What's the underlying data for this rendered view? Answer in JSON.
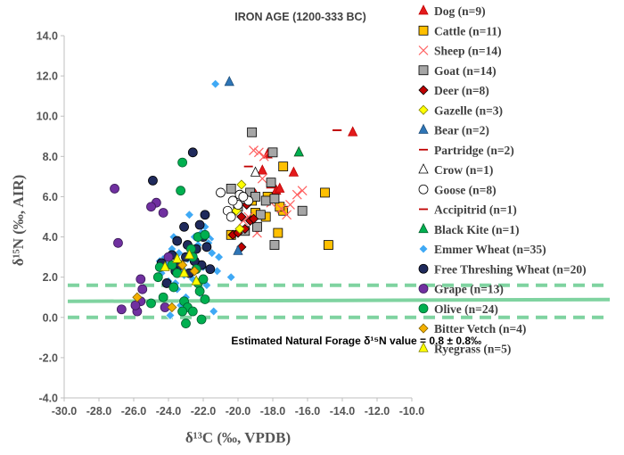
{
  "chart_data": {
    "type": "scatter",
    "title": "IRON AGE (1200-333 BC)",
    "xlabel": "δ¹³C (‰, VPDB)",
    "ylabel": "δ¹⁵N (‰, AIR)",
    "xlim": [
      -30.0,
      -10.0
    ],
    "ylim": [
      -4.0,
      14.0
    ],
    "xticks": [
      "-30.0",
      "-28.0",
      "-26.0",
      "-24.0",
      "-22.0",
      "-20.0",
      "-18.0",
      "-16.0",
      "-14.0",
      "-12.0",
      "-10.0"
    ],
    "yticks": [
      "-4.0",
      "-2.0",
      "0.0",
      "2.0",
      "4.0",
      "6.0",
      "8.0",
      "10.0",
      "12.0",
      "14.0"
    ],
    "grid": false,
    "legend_position": "right",
    "reference_lines": {
      "natural_forage_mean": 0.8,
      "upper": 1.6,
      "lower": 0.0,
      "color": "#7fd3a0"
    },
    "annotation": "Estimated Natural Forage δ¹⁵N value = 0.8 ± 0.8‰",
    "series": [
      {
        "name": "Dog (n=9)",
        "marker": "triangle",
        "fill": "#e31a1c",
        "stroke": "#c00000",
        "points": [
          [
            -13.4,
            9.2
          ],
          [
            -16.5,
            8.2
          ],
          [
            -17.8,
            6.3
          ],
          [
            -18.6,
            7.3
          ],
          [
            -16.8,
            7.2
          ],
          [
            -18.1,
            6.6
          ],
          [
            -19.0,
            6.1
          ],
          [
            -18.3,
            8.1
          ],
          [
            -17.6,
            6.4
          ]
        ]
      },
      {
        "name": "Cattle (n=11)",
        "marker": "square",
        "fill": "#ffc000",
        "stroke": "#000000",
        "points": [
          [
            -17.4,
            7.5
          ],
          [
            -15.0,
            6.2
          ],
          [
            -14.8,
            3.6
          ],
          [
            -17.4,
            5.3
          ],
          [
            -19.0,
            5.2
          ],
          [
            -17.7,
            4.2
          ],
          [
            -18.4,
            5.0
          ],
          [
            -19.2,
            5.8
          ],
          [
            -18.3,
            6.0
          ],
          [
            -20.4,
            4.1
          ],
          [
            -17.6,
            5.5
          ]
        ]
      },
      {
        "name": "Sheep (n=14)",
        "marker": "x",
        "fill": "none",
        "stroke": "#ff6060",
        "points": [
          [
            -19.1,
            8.3
          ],
          [
            -18.8,
            8.2
          ],
          [
            -18.5,
            8.0
          ],
          [
            -16.3,
            6.3
          ],
          [
            -16.6,
            6.1
          ],
          [
            -17.0,
            5.6
          ],
          [
            -17.2,
            5.1
          ],
          [
            -17.5,
            5.4
          ],
          [
            -19.4,
            5.0
          ],
          [
            -19.7,
            4.8
          ],
          [
            -18.9,
            4.2
          ],
          [
            -20.2,
            5.2
          ],
          [
            -18.1,
            5.7
          ],
          [
            -18.6,
            6.9
          ]
        ]
      },
      {
        "name": "Goat (n=14)",
        "marker": "square",
        "fill": "#a6a6a6",
        "stroke": "#000000",
        "points": [
          [
            -19.2,
            9.2
          ],
          [
            -18.0,
            8.2
          ],
          [
            -16.3,
            5.3
          ],
          [
            -17.9,
            3.6
          ],
          [
            -20.4,
            6.4
          ],
          [
            -19.3,
            6.2
          ],
          [
            -18.1,
            6.7
          ],
          [
            -18.4,
            5.8
          ],
          [
            -19.6,
            4.3
          ],
          [
            -18.9,
            4.5
          ],
          [
            -17.9,
            5.9
          ],
          [
            -19.0,
            6.0
          ],
          [
            -20.0,
            5.5
          ],
          [
            -18.7,
            5.1
          ]
        ]
      },
      {
        "name": "Deer (n=8)",
        "marker": "diamond",
        "fill": "#c00000",
        "stroke": "#000000",
        "points": [
          [
            -19.8,
            5.0
          ],
          [
            -19.3,
            4.8
          ],
          [
            -20.3,
            4.1
          ],
          [
            -19.6,
            4.4
          ],
          [
            -19.8,
            3.5
          ],
          [
            -19.5,
            5.6
          ],
          [
            -19.1,
            4.9
          ],
          [
            -20.0,
            4.2
          ]
        ]
      },
      {
        "name": "Gazelle (n=3)",
        "marker": "diamond",
        "fill": "#ffff00",
        "stroke": "#808000",
        "points": [
          [
            -19.8,
            6.6
          ],
          [
            -20.1,
            5.3
          ],
          [
            -19.9,
            4.4
          ]
        ]
      },
      {
        "name": "Bear (n=2)",
        "marker": "triangle",
        "fill": "#2e75b6",
        "stroke": "#1f4e79",
        "points": [
          [
            -20.5,
            11.7
          ],
          [
            -20.0,
            3.3
          ]
        ]
      },
      {
        "name": "Partridge (n=2)",
        "marker": "dash",
        "fill": "none",
        "stroke": "#c00000",
        "points": [
          [
            -14.3,
            9.3
          ],
          [
            -19.4,
            7.5
          ]
        ]
      },
      {
        "name": "Crow (n=1)",
        "marker": "triangle",
        "fill": "#ffffff",
        "stroke": "#000000",
        "points": [
          [
            -19.0,
            7.2
          ]
        ]
      },
      {
        "name": "Goose (n=8)",
        "marker": "circle",
        "fill": "#ffffff",
        "stroke": "#000000",
        "points": [
          [
            -21.0,
            6.2
          ],
          [
            -20.6,
            5.3
          ],
          [
            -20.4,
            5.0
          ],
          [
            -19.9,
            6.1
          ],
          [
            -19.4,
            5.8
          ],
          [
            -20.0,
            5.6
          ],
          [
            -19.7,
            6.0
          ],
          [
            -20.3,
            5.8
          ]
        ]
      },
      {
        "name": "Accipitrid (n=1)",
        "marker": "dash",
        "fill": "none",
        "stroke": "#c00000",
        "points": [
          [
            -14.3,
            9.3
          ]
        ]
      },
      {
        "name": "Black Kite (n=1)",
        "marker": "triangle",
        "fill": "#00b050",
        "stroke": "#00602c",
        "points": [
          [
            -16.5,
            8.2
          ]
        ]
      },
      {
        "name": "Emmer Wheat (n=35)",
        "marker": "diamond",
        "fill": "#3fa9f5",
        "stroke": "#ffffff",
        "points": [
          [
            -21.3,
            11.6
          ],
          [
            -22.8,
            5.1
          ],
          [
            -21.6,
            3.9
          ],
          [
            -22.0,
            2.5
          ],
          [
            -23.4,
            3.2
          ],
          [
            -24.1,
            2.6
          ],
          [
            -24.3,
            2.9
          ],
          [
            -23.1,
            2.1
          ],
          [
            -22.6,
            1.9
          ],
          [
            -21.8,
            1.6
          ],
          [
            -20.4,
            2.0
          ],
          [
            -23.9,
            0.1
          ],
          [
            -23.3,
            0.6
          ],
          [
            -21.4,
            0.3
          ],
          [
            -22.3,
            3.6
          ],
          [
            -23.7,
            4.0
          ],
          [
            -22.9,
            2.9
          ],
          [
            -24.0,
            1.8
          ],
          [
            -22.1,
            4.2
          ],
          [
            -21.5,
            3.2
          ],
          [
            -23.5,
            1.4
          ],
          [
            -22.7,
            3.3
          ],
          [
            -21.2,
            2.3
          ],
          [
            -24.4,
            2.2
          ],
          [
            -23.0,
            1.0
          ],
          [
            -22.4,
            2.7
          ],
          [
            -21.7,
            3.7
          ],
          [
            -23.8,
            3.4
          ],
          [
            -22.2,
            1.2
          ],
          [
            -21.9,
            4.5
          ],
          [
            -24.5,
            2.8
          ],
          [
            -22.5,
            4.0
          ],
          [
            -23.2,
            2.4
          ],
          [
            -21.1,
            3.0
          ],
          [
            -23.6,
            1.7
          ]
        ]
      },
      {
        "name": "Free Threshing Wheat (n=20)",
        "marker": "circle",
        "fill": "#1f2a5c",
        "stroke": "#000000",
        "points": [
          [
            -22.6,
            8.2
          ],
          [
            -21.9,
            5.1
          ],
          [
            -23.1,
            4.5
          ],
          [
            -22.0,
            4.0
          ],
          [
            -23.5,
            3.8
          ],
          [
            -22.4,
            3.4
          ],
          [
            -24.4,
            2.7
          ],
          [
            -23.6,
            2.3
          ],
          [
            -21.6,
            2.4
          ],
          [
            -22.1,
            2.6
          ],
          [
            -22.8,
            2.2
          ],
          [
            -24.1,
            1.7
          ],
          [
            -24.9,
            6.8
          ],
          [
            -23.0,
            3.0
          ],
          [
            -22.2,
            4.6
          ],
          [
            -23.8,
            3.1
          ],
          [
            -22.5,
            2.8
          ],
          [
            -21.8,
            3.5
          ],
          [
            -23.3,
            2.6
          ],
          [
            -22.9,
            3.6
          ]
        ]
      },
      {
        "name": "Grape (n=13)",
        "marker": "circle",
        "fill": "#7030a0",
        "stroke": "#3a1a58",
        "points": [
          [
            -27.1,
            6.4
          ],
          [
            -24.7,
            5.7
          ],
          [
            -25.0,
            5.5
          ],
          [
            -24.3,
            5.2
          ],
          [
            -26.9,
            3.7
          ],
          [
            -25.6,
            1.9
          ],
          [
            -25.5,
            1.4
          ],
          [
            -24.0,
            3.0
          ],
          [
            -25.6,
            0.8
          ],
          [
            -25.8,
            0.3
          ],
          [
            -26.7,
            0.4
          ],
          [
            -25.9,
            0.6
          ],
          [
            -24.2,
            0.5
          ]
        ]
      },
      {
        "name": "Olive (n=24)",
        "marker": "circle",
        "fill": "#00b050",
        "stroke": "#006030",
        "points": [
          [
            -23.2,
            7.7
          ],
          [
            -23.3,
            6.3
          ],
          [
            -22.7,
            3.4
          ],
          [
            -22.3,
            4.0
          ],
          [
            -21.9,
            4.1
          ],
          [
            -22.6,
            3.0
          ],
          [
            -24.5,
            2.5
          ],
          [
            -24.6,
            2.0
          ],
          [
            -23.7,
            1.5
          ],
          [
            -22.3,
            1.7
          ],
          [
            -22.2,
            1.3
          ],
          [
            -23.1,
            0.8
          ],
          [
            -22.0,
            1.9
          ],
          [
            -25.0,
            0.7
          ],
          [
            -22.9,
            0.5
          ],
          [
            -23.2,
            0.3
          ],
          [
            -22.6,
            0.3
          ],
          [
            -22.1,
            -0.1
          ],
          [
            -23.0,
            -0.3
          ],
          [
            -24.3,
            1.0
          ],
          [
            -23.5,
            2.2
          ],
          [
            -22.4,
            2.4
          ],
          [
            -21.9,
            0.9
          ],
          [
            -23.8,
            2.6
          ]
        ]
      },
      {
        "name": "Bitter Vetch (n=4)",
        "marker": "diamond",
        "fill": "#f4b000",
        "stroke": "#806000",
        "points": [
          [
            -25.8,
            1.0
          ],
          [
            -23.8,
            0.5
          ],
          [
            -23.2,
            2.6
          ],
          [
            -22.5,
            2.3
          ]
        ]
      },
      {
        "name": "Ryegrass (n=5)",
        "marker": "triangle",
        "fill": "#ffff00",
        "stroke": "#808000",
        "points": [
          [
            -22.8,
            3.1
          ],
          [
            -23.1,
            2.2
          ],
          [
            -24.2,
            2.5
          ],
          [
            -22.4,
            1.8
          ],
          [
            -23.5,
            2.9
          ]
        ]
      }
    ]
  }
}
